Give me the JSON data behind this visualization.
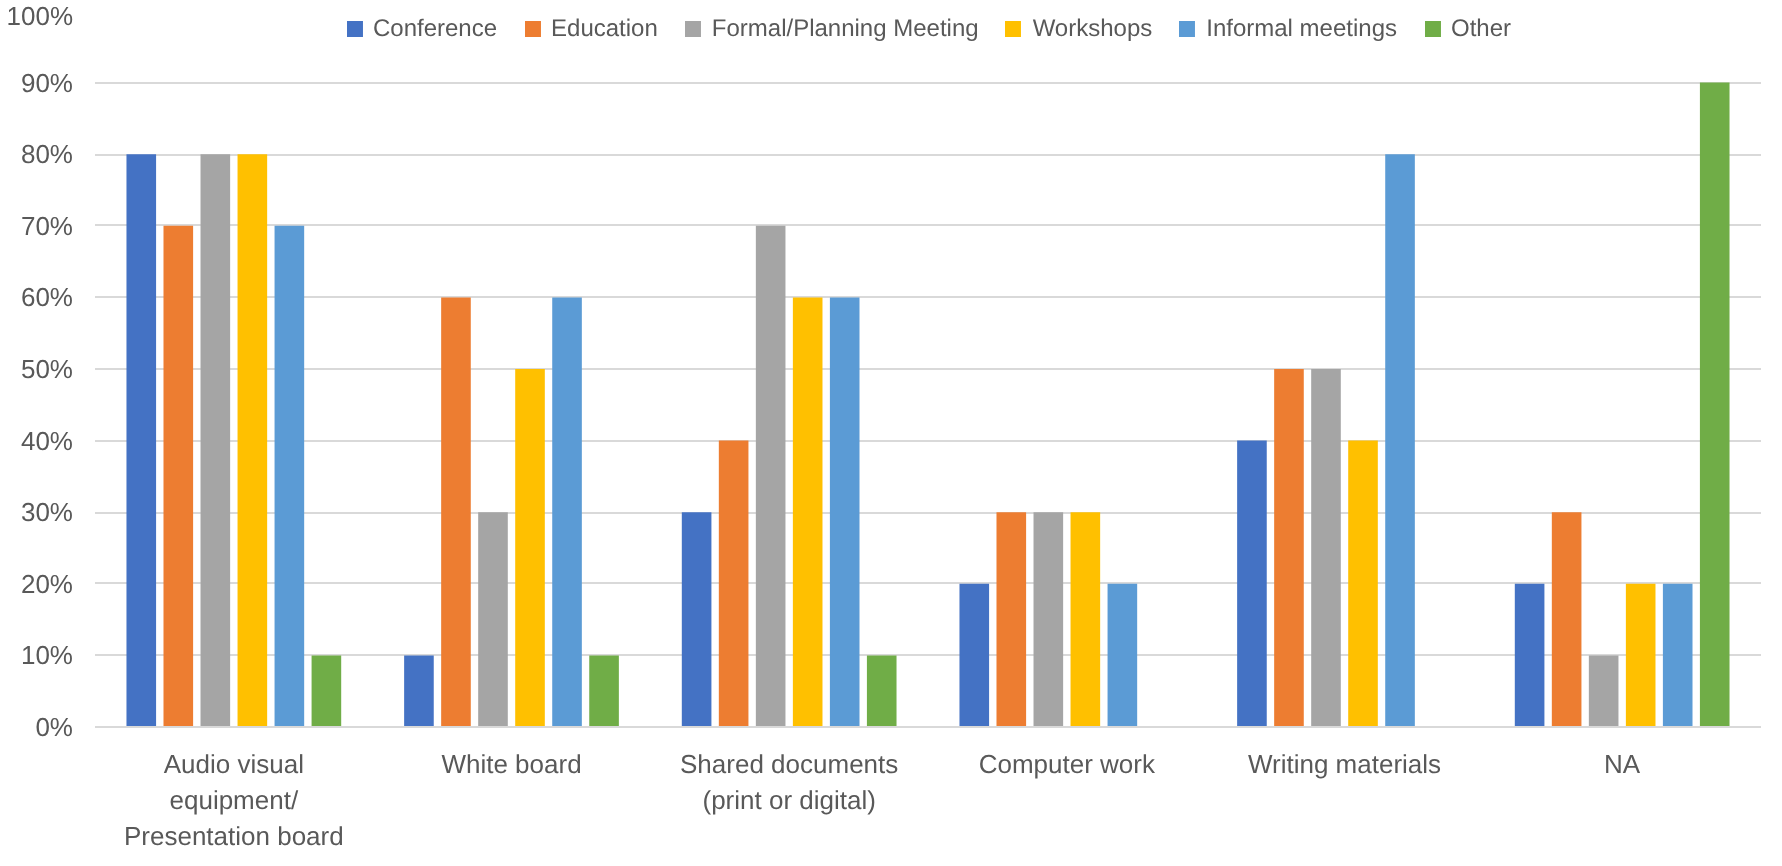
{
  "chart_data": {
    "type": "bar",
    "categories": [
      "Audio visual\nequipment/\nPresentation board",
      "White board",
      "Shared documents\n(print or digital)",
      "Computer work",
      "Writing materials",
      "NA"
    ],
    "series": [
      {
        "name": "Conference",
        "color": "#4472c4",
        "values": [
          80,
          10,
          30,
          20,
          40,
          20
        ]
      },
      {
        "name": "Education",
        "color": "#ed7d31",
        "values": [
          70,
          60,
          40,
          30,
          50,
          30
        ]
      },
      {
        "name": "Formal/Planning Meeting",
        "color": "#a5a5a5",
        "values": [
          80,
          30,
          70,
          30,
          50,
          10
        ]
      },
      {
        "name": "Workshops",
        "color": "#ffc000",
        "values": [
          80,
          50,
          60,
          30,
          40,
          20
        ]
      },
      {
        "name": "Informal meetings",
        "color": "#5b9bd5",
        "values": [
          70,
          60,
          60,
          20,
          80,
          20
        ]
      },
      {
        "name": "Other",
        "color": "#70ad47",
        "values": [
          10,
          10,
          10,
          0,
          0,
          90
        ]
      }
    ],
    "ylim": [
      0,
      100
    ],
    "yticks": [
      {
        "value": 0,
        "label": "0%"
      },
      {
        "value": 10,
        "label": "10%"
      },
      {
        "value": 20,
        "label": "20%"
      },
      {
        "value": 30,
        "label": "30%"
      },
      {
        "value": 40,
        "label": "40%"
      },
      {
        "value": 50,
        "label": "50%"
      },
      {
        "value": 60,
        "label": "60%"
      },
      {
        "value": 70,
        "label": "70%"
      },
      {
        "value": 80,
        "label": "80%"
      },
      {
        "value": 90,
        "label": "90%"
      },
      {
        "value": 100,
        "label": "100%"
      }
    ],
    "grid": "y",
    "legend": "top"
  }
}
